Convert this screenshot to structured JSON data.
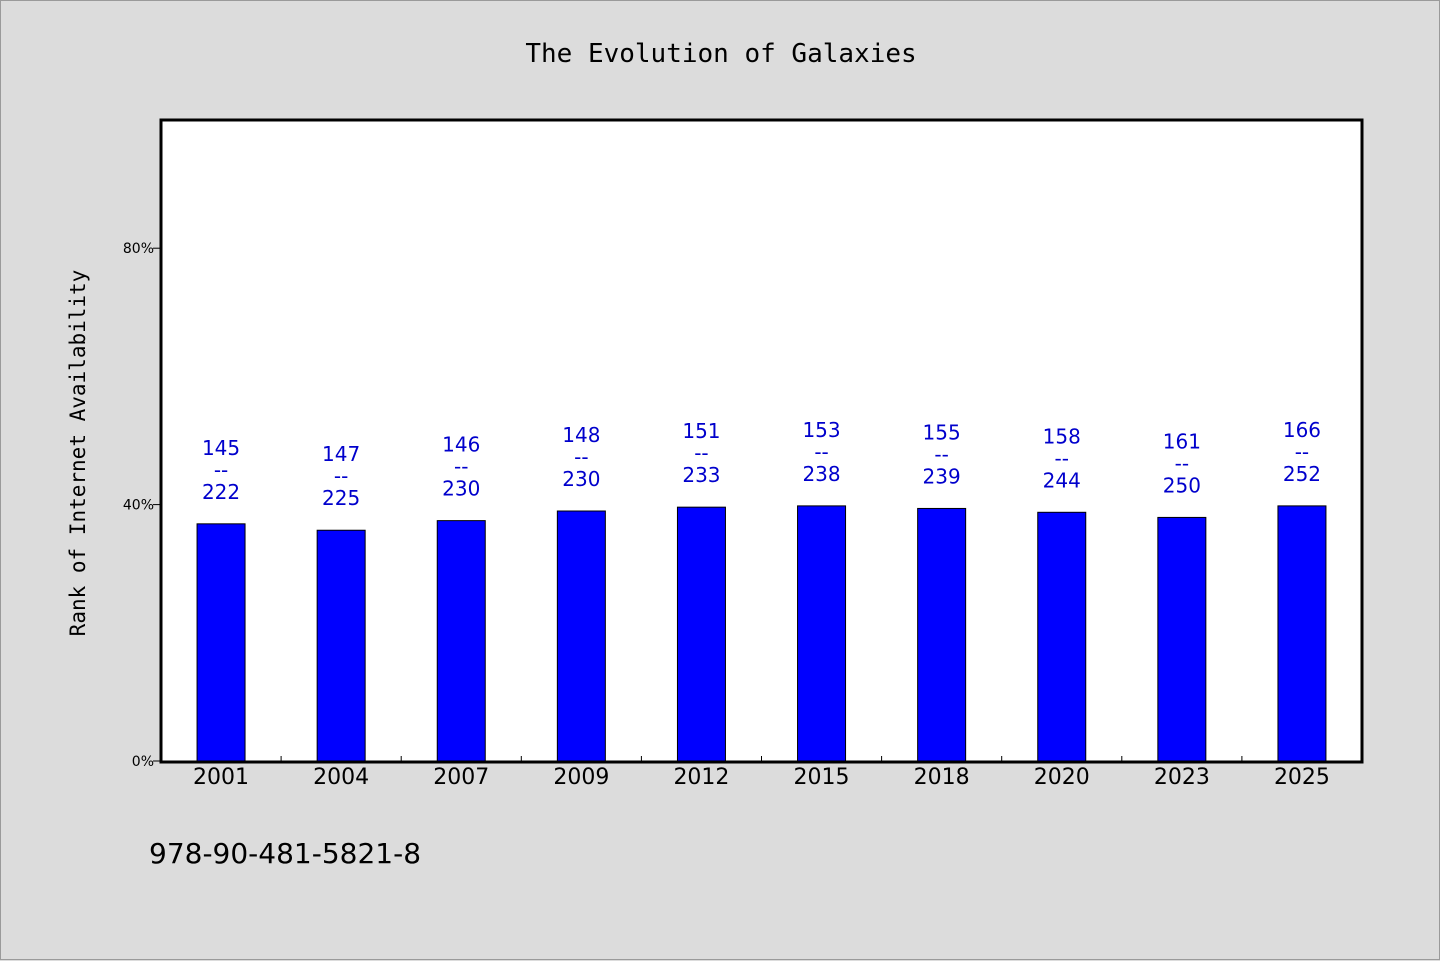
{
  "chart_data": {
    "type": "bar",
    "title": "The Evolution of Galaxies",
    "xlabel": "",
    "ylabel": "Rank of Internet Availability",
    "categories": [
      "2001",
      "2004",
      "2007",
      "2009",
      "2012",
      "2015",
      "2018",
      "2020",
      "2023",
      "2025"
    ],
    "values": [
      37,
      36,
      37.5,
      39,
      39.6,
      39.8,
      39.4,
      38.8,
      38,
      39.8
    ],
    "data_labels": [
      {
        "top": "145",
        "mid": "--",
        "bottom": "222"
      },
      {
        "top": "147",
        "mid": "--",
        "bottom": "225"
      },
      {
        "top": "146",
        "mid": "--",
        "bottom": "230"
      },
      {
        "top": "148",
        "mid": "--",
        "bottom": "230"
      },
      {
        "top": "151",
        "mid": "--",
        "bottom": "233"
      },
      {
        "top": "153",
        "mid": "--",
        "bottom": "238"
      },
      {
        "top": "155",
        "mid": "--",
        "bottom": "239"
      },
      {
        "top": "158",
        "mid": "--",
        "bottom": "244"
      },
      {
        "top": "161",
        "mid": "--",
        "bottom": "250"
      },
      {
        "top": "166",
        "mid": "--",
        "bottom": "252"
      }
    ],
    "yticks": [
      {
        "value": 0,
        "label": "0%"
      },
      {
        "value": 40,
        "label": "40%"
      },
      {
        "value": 80,
        "label": "80%"
      }
    ],
    "ylim": [
      0,
      100
    ],
    "grid": false,
    "bar_color": "#0000ff",
    "label_color": "#0000cc"
  },
  "footer": {
    "text": "978-90-481-5821-8"
  }
}
